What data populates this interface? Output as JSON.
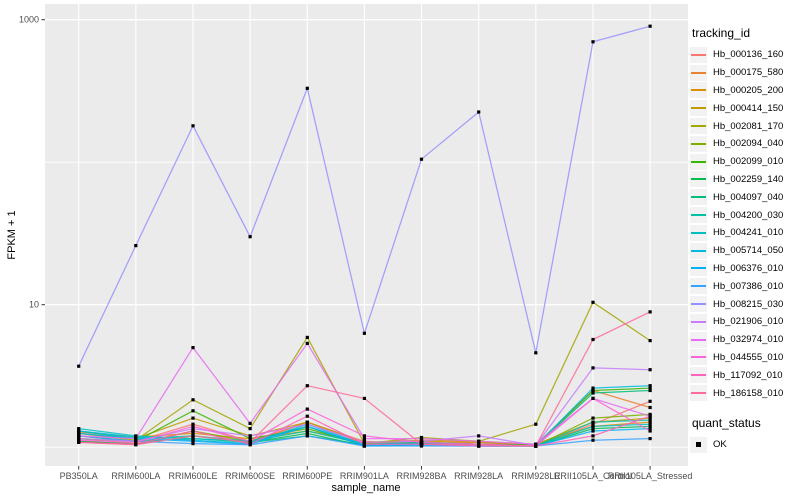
{
  "figure": {
    "background": "#FFFFFF",
    "panel_bg": "#EBEBEB",
    "grid_color": "#FFFFFF",
    "axis_text_color": "#4D4D4D",
    "tick_color": "#333333",
    "point_color": "#000000"
  },
  "chart_data": {
    "type": "line",
    "title": "",
    "xlabel": "sample_name",
    "ylabel": "FPKM + 1",
    "y_scale": "log10",
    "ylim": [
      0.74,
      1290
    ],
    "y_tick_values": [
      10,
      1000
    ],
    "y_tick_labels": [
      "10",
      "1000"
    ],
    "y_minor_gridlines": [
      1,
      100
    ],
    "grid": true,
    "legend_position": "right",
    "categories": [
      "PB350LA",
      "RRIM600LA",
      "RRIM600LE",
      "RRIM600SE",
      "RRIM600PE",
      "RRIM901LA",
      "RRIM928BA",
      "RRIM928LA",
      "RRIM928LE",
      "RRII105LA_Control",
      "RRII105LA_Stressed"
    ],
    "series": [
      {
        "name": "Hb_000136_160",
        "color": "#F8766D",
        "values": [
          1.2,
          1.1,
          1.45,
          1.1,
          1.5,
          1.1,
          1.05,
          1.08,
          1.02,
          1.45,
          2.1
        ]
      },
      {
        "name": "Hb_000175_580",
        "color": "#EA8331",
        "values": [
          1.15,
          1.06,
          1.3,
          1.06,
          1.5,
          1.06,
          1.08,
          1.05,
          1.02,
          2.5,
          1.9
        ]
      },
      {
        "name": "Hb_000205_200",
        "color": "#D89000",
        "values": [
          1.28,
          1.18,
          1.25,
          1.15,
          1.3,
          1.08,
          1.1,
          1.08,
          1.05,
          1.4,
          1.5
        ]
      },
      {
        "name": "Hb_000414_150",
        "color": "#C09B00",
        "values": [
          1.25,
          1.15,
          1.6,
          1.2,
          1.5,
          1.08,
          1.12,
          1.1,
          1.05,
          1.5,
          1.6
        ]
      },
      {
        "name": "Hb_002081_170",
        "color": "#A3A500",
        "values": [
          1.25,
          1.12,
          2.15,
          1.35,
          5.9,
          1.06,
          1.17,
          1.1,
          1.45,
          10.4,
          5.6
        ]
      },
      {
        "name": "Hb_002094_040",
        "color": "#7CAE00",
        "values": [
          1.1,
          1.05,
          1.3,
          1.1,
          1.4,
          1.02,
          1.05,
          1.04,
          1.02,
          1.6,
          1.7
        ]
      },
      {
        "name": "Hb_002099_010",
        "color": "#39B600",
        "values": [
          1.15,
          1.1,
          1.8,
          1.15,
          1.35,
          1.04,
          1.08,
          1.05,
          1.04,
          2.5,
          2.6
        ]
      },
      {
        "name": "Hb_002259_140",
        "color": "#00BB4E",
        "values": [
          1.1,
          1.05,
          1.2,
          1.08,
          1.25,
          1.02,
          1.04,
          1.02,
          1.02,
          1.35,
          1.4
        ]
      },
      {
        "name": "Hb_004097_040",
        "color": "#00BF7D",
        "values": [
          1.2,
          1.1,
          1.15,
          1.08,
          1.2,
          1.04,
          1.05,
          1.04,
          1.02,
          2.4,
          2.5
        ]
      },
      {
        "name": "Hb_004200_030",
        "color": "#00C1A3",
        "values": [
          1.3,
          1.15,
          1.2,
          1.1,
          1.3,
          1.05,
          1.08,
          1.05,
          1.02,
          1.5,
          1.55
        ]
      },
      {
        "name": "Hb_004241_010",
        "color": "#00BFC4",
        "values": [
          1.35,
          1.2,
          1.15,
          1.1,
          1.4,
          1.05,
          1.06,
          1.04,
          1.02,
          1.4,
          1.45
        ]
      },
      {
        "name": "Hb_005714_050",
        "color": "#00BAE0",
        "values": [
          1.3,
          1.18,
          1.12,
          1.06,
          1.45,
          1.04,
          1.05,
          1.02,
          1.02,
          2.6,
          2.7
        ]
      },
      {
        "name": "Hb_006376_010",
        "color": "#00B0F6",
        "values": [
          1.25,
          1.15,
          1.1,
          1.05,
          1.4,
          1.02,
          1.04,
          1.02,
          1.02,
          1.3,
          1.35
        ]
      },
      {
        "name": "Hb_007386_010",
        "color": "#35A2FF",
        "values": [
          1.2,
          1.1,
          1.06,
          1.04,
          1.2,
          1.02,
          1.02,
          1.02,
          1.02,
          1.12,
          1.15
        ]
      },
      {
        "name": "Hb_008215_030",
        "color": "#9590FF",
        "values": [
          3.7,
          26,
          180,
          30,
          330,
          6.3,
          105,
          225,
          4.6,
          700,
          900
        ]
      },
      {
        "name": "Hb_021906_010",
        "color": "#C77CFF",
        "values": [
          1.15,
          1.1,
          1.35,
          1.2,
          1.45,
          1.08,
          1.1,
          1.2,
          1.03,
          3.6,
          3.5
        ]
      },
      {
        "name": "Hb_032974_010",
        "color": "#E76BF3",
        "values": [
          1.2,
          1.15,
          5.0,
          1.47,
          5.35,
          1.15,
          1.15,
          1.1,
          1.05,
          2.2,
          1.65
        ]
      },
      {
        "name": "Hb_044555_010",
        "color": "#FA62DB",
        "values": [
          1.12,
          1.08,
          1.4,
          1.1,
          1.85,
          1.2,
          1.08,
          1.05,
          1.02,
          2.2,
          1.3
        ]
      },
      {
        "name": "Hb_117092_010",
        "color": "#FF62BC",
        "values": [
          1.08,
          1.05,
          1.3,
          1.05,
          1.65,
          1.05,
          1.05,
          1.02,
          1.02,
          1.2,
          1.65
        ]
      },
      {
        "name": "Hb_186158_010",
        "color": "#FF6A98",
        "values": [
          1.08,
          1.04,
          1.2,
          1.08,
          2.7,
          2.2,
          1.05,
          1.04,
          1.02,
          5.7,
          8.9
        ]
      }
    ],
    "legend": {
      "title": "tracking_id"
    },
    "legend2": {
      "title": "quant_status",
      "items": [
        {
          "label": "OK",
          "marker": "black-square"
        }
      ]
    }
  }
}
